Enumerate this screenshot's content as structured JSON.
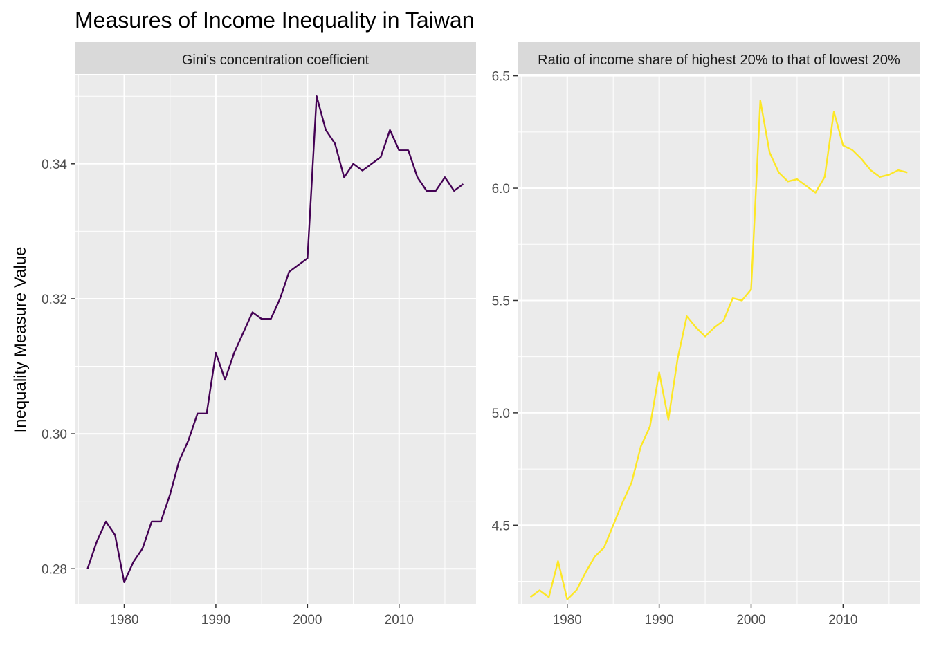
{
  "title": "Measures of Income Inequality in Taiwan",
  "ylabel": "Inequality Measure Value",
  "chart_data": [
    {
      "type": "line",
      "title": "Gini's concentration coefficient",
      "color": "#440154",
      "xlim": [
        1974.6,
        2018.4
      ],
      "ylim": [
        0.2748,
        0.3532
      ],
      "x_ticks": [
        1980,
        1990,
        2000,
        2010
      ],
      "x_tick_labels": [
        "1980",
        "1990",
        "2000",
        "2010"
      ],
      "y_ticks": [
        0.28,
        0.3,
        0.32,
        0.34
      ],
      "y_tick_labels": [
        "0.28",
        "0.30",
        "0.32",
        "0.34"
      ],
      "x": [
        1976,
        1977,
        1978,
        1979,
        1980,
        1981,
        1982,
        1983,
        1984,
        1985,
        1986,
        1987,
        1988,
        1989,
        1990,
        1991,
        1992,
        1993,
        1994,
        1995,
        1996,
        1997,
        1998,
        1999,
        2000,
        2001,
        2002,
        2003,
        2004,
        2005,
        2006,
        2007,
        2008,
        2009,
        2010,
        2011,
        2012,
        2013,
        2014,
        2015,
        2016,
        2017
      ],
      "y": [
        0.28,
        0.284,
        0.287,
        0.285,
        0.278,
        0.281,
        0.283,
        0.287,
        0.287,
        0.291,
        0.296,
        0.299,
        0.303,
        0.303,
        0.312,
        0.308,
        0.312,
        0.315,
        0.318,
        0.317,
        0.317,
        0.32,
        0.324,
        0.325,
        0.326,
        0.35,
        0.345,
        0.343,
        0.338,
        0.34,
        0.339,
        0.34,
        0.341,
        0.345,
        0.342,
        0.342,
        0.338,
        0.336,
        0.336,
        0.338,
        0.336,
        0.337
      ]
    },
    {
      "type": "line",
      "title": "Ratio of income share of highest 20% to that of lowest 20%",
      "color": "#FDE725",
      "xlim": [
        1974.6,
        2018.4
      ],
      "ylim": [
        4.15,
        6.505
      ],
      "x_ticks": [
        1980,
        1990,
        2000,
        2010
      ],
      "x_tick_labels": [
        "1980",
        "1990",
        "2000",
        "2010"
      ],
      "y_ticks": [
        4.5,
        5.0,
        5.5,
        6.0,
        6.5
      ],
      "y_tick_labels": [
        "4.5",
        "5.0",
        "5.5",
        "6.0",
        "6.5"
      ],
      "x": [
        1976,
        1977,
        1978,
        1979,
        1980,
        1981,
        1982,
        1983,
        1984,
        1985,
        1986,
        1987,
        1988,
        1989,
        1990,
        1991,
        1992,
        1993,
        1994,
        1995,
        1996,
        1997,
        1998,
        1999,
        2000,
        2001,
        2002,
        2003,
        2004,
        2005,
        2006,
        2007,
        2008,
        2009,
        2010,
        2011,
        2012,
        2013,
        2014,
        2015,
        2016,
        2017
      ],
      "y": [
        4.18,
        4.21,
        4.18,
        4.34,
        4.17,
        4.21,
        4.29,
        4.36,
        4.4,
        4.5,
        4.6,
        4.69,
        4.85,
        4.94,
        5.18,
        4.97,
        5.24,
        5.43,
        5.38,
        5.34,
        5.38,
        5.41,
        5.51,
        5.5,
        5.55,
        6.39,
        6.16,
        6.07,
        6.03,
        6.04,
        6.01,
        5.98,
        6.05,
        6.34,
        6.19,
        6.17,
        6.13,
        6.08,
        6.05,
        6.06,
        6.08,
        6.07
      ]
    }
  ]
}
